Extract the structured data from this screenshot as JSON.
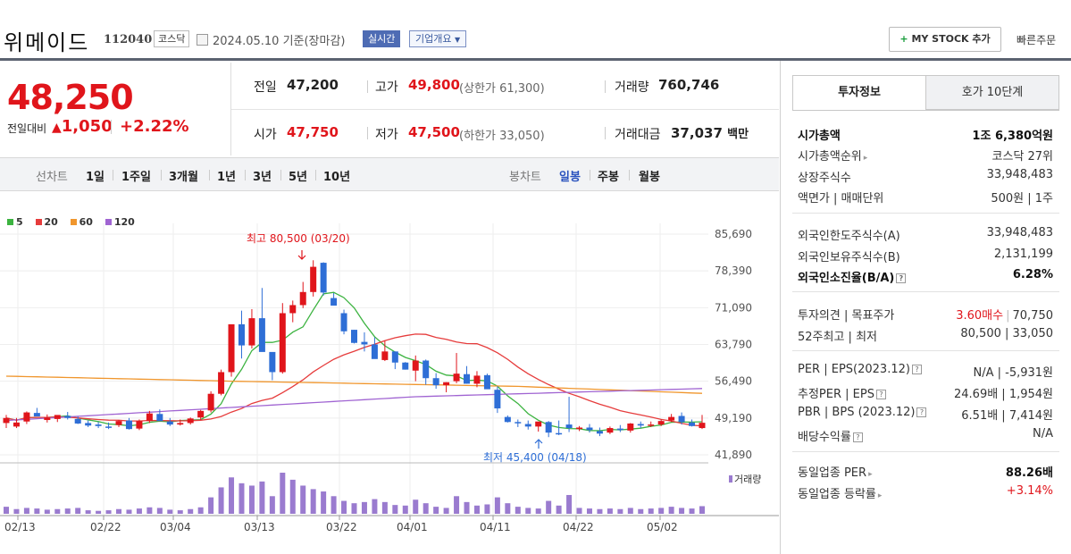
{
  "header": {
    "company": "위메이드",
    "code": "112040",
    "market": "코스닥",
    "date": "2024.05.10  기준(장마감)",
    "realtime": "실시간",
    "company_info": "기업개요",
    "mystock": "MY STOCK 추가",
    "quick_order": "빠른주문"
  },
  "quote": {
    "price": "48,250",
    "change_label": "전일대비",
    "change": "1,050",
    "change_pct": "+2.22%",
    "prev_close_label": "전일",
    "prev_close": "47,200",
    "high_label": "고가",
    "high": "49,800",
    "upper_limit": "(상한가 61,300)",
    "volume_label": "거래량",
    "volume": "760,746",
    "open_label": "시가",
    "open": "47,750",
    "low_label": "저가",
    "low": "47,500",
    "lower_limit": "(하한가 33,050)",
    "amount_label": "거래대금",
    "amount": "37,037",
    "amount_unit": "백만"
  },
  "periods": {
    "label": "선차트",
    "items": [
      "1일",
      "1주일",
      "3개월",
      "1년",
      "3년",
      "5년",
      "10년"
    ],
    "candle_label": "봉차트",
    "candle_items": [
      "일봉",
      "주봉",
      "월봉"
    ],
    "candle_active": "일봉"
  },
  "legend": [
    {
      "name": "5",
      "color": "#3cb340"
    },
    {
      "name": "20",
      "color": "#e63c3c"
    },
    {
      "name": "60",
      "color": "#f0962d"
    },
    {
      "name": "120",
      "color": "#a064d2"
    }
  ],
  "chart_data": {
    "type": "candlestick",
    "y_ticks": [
      "85,690",
      "78,390",
      "71,090",
      "63,790",
      "56,490",
      "49,190",
      "41,890"
    ],
    "x_ticks": [
      "02/13",
      "02/22",
      "03/04",
      "03/13",
      "03/22",
      "04/01",
      "04/11",
      "04/22",
      "05/02"
    ],
    "ylim": [
      41890,
      85690
    ],
    "annotations": {
      "high": "최고 80,500 (03/20)",
      "low": "최저 45,400 (04/18)"
    },
    "volume_label": "거래량",
    "colors": {
      "up": "#e0151b",
      "down": "#2e6ed6",
      "volume": "#9a7bcf"
    }
  },
  "panel": {
    "tab_active": "투자정보",
    "tab_other": "호가 10단계",
    "rows1": [
      {
        "label": "시가총액",
        "value": "1조 6,380억원",
        "bold": true
      },
      {
        "label": "시가총액순위",
        "value": "코스닥 27위",
        "arrow": true
      },
      {
        "label": "상장주식수",
        "value": "33,948,483"
      },
      {
        "label": "액면가 | 매매단위",
        "value": "500원 | 1주"
      }
    ],
    "rows2": [
      {
        "label": "외국인한도주식수(A)",
        "value": "33,948,483"
      },
      {
        "label": "외국인보유주식수(B)",
        "value": "2,131,199"
      },
      {
        "label": "외국인소진율(B/A)",
        "value": "6.28%",
        "bold": true
      }
    ],
    "opinion_label": "투자의견 | 목표주가",
    "opinion": "3.60매수",
    "target": "70,750",
    "w52_label": "52주최고 | 최저",
    "w52": "80,500 | 33,050",
    "per_label": "PER | EPS(2023.12)",
    "per": "N/A | -5,931원",
    "est_label": "추정PER | EPS",
    "est": "24.69배 | 1,954원",
    "pbr_label": "PBR | BPS (2023.12)",
    "pbr": "6.51배 | 7,414원",
    "div_label": "배당수익률",
    "div": "N/A",
    "sector_per_label": "동일업종 PER",
    "sector_per": "88.26배",
    "sector_chg_label": "동일업종 등락률",
    "sector_chg": "+3.14%"
  }
}
